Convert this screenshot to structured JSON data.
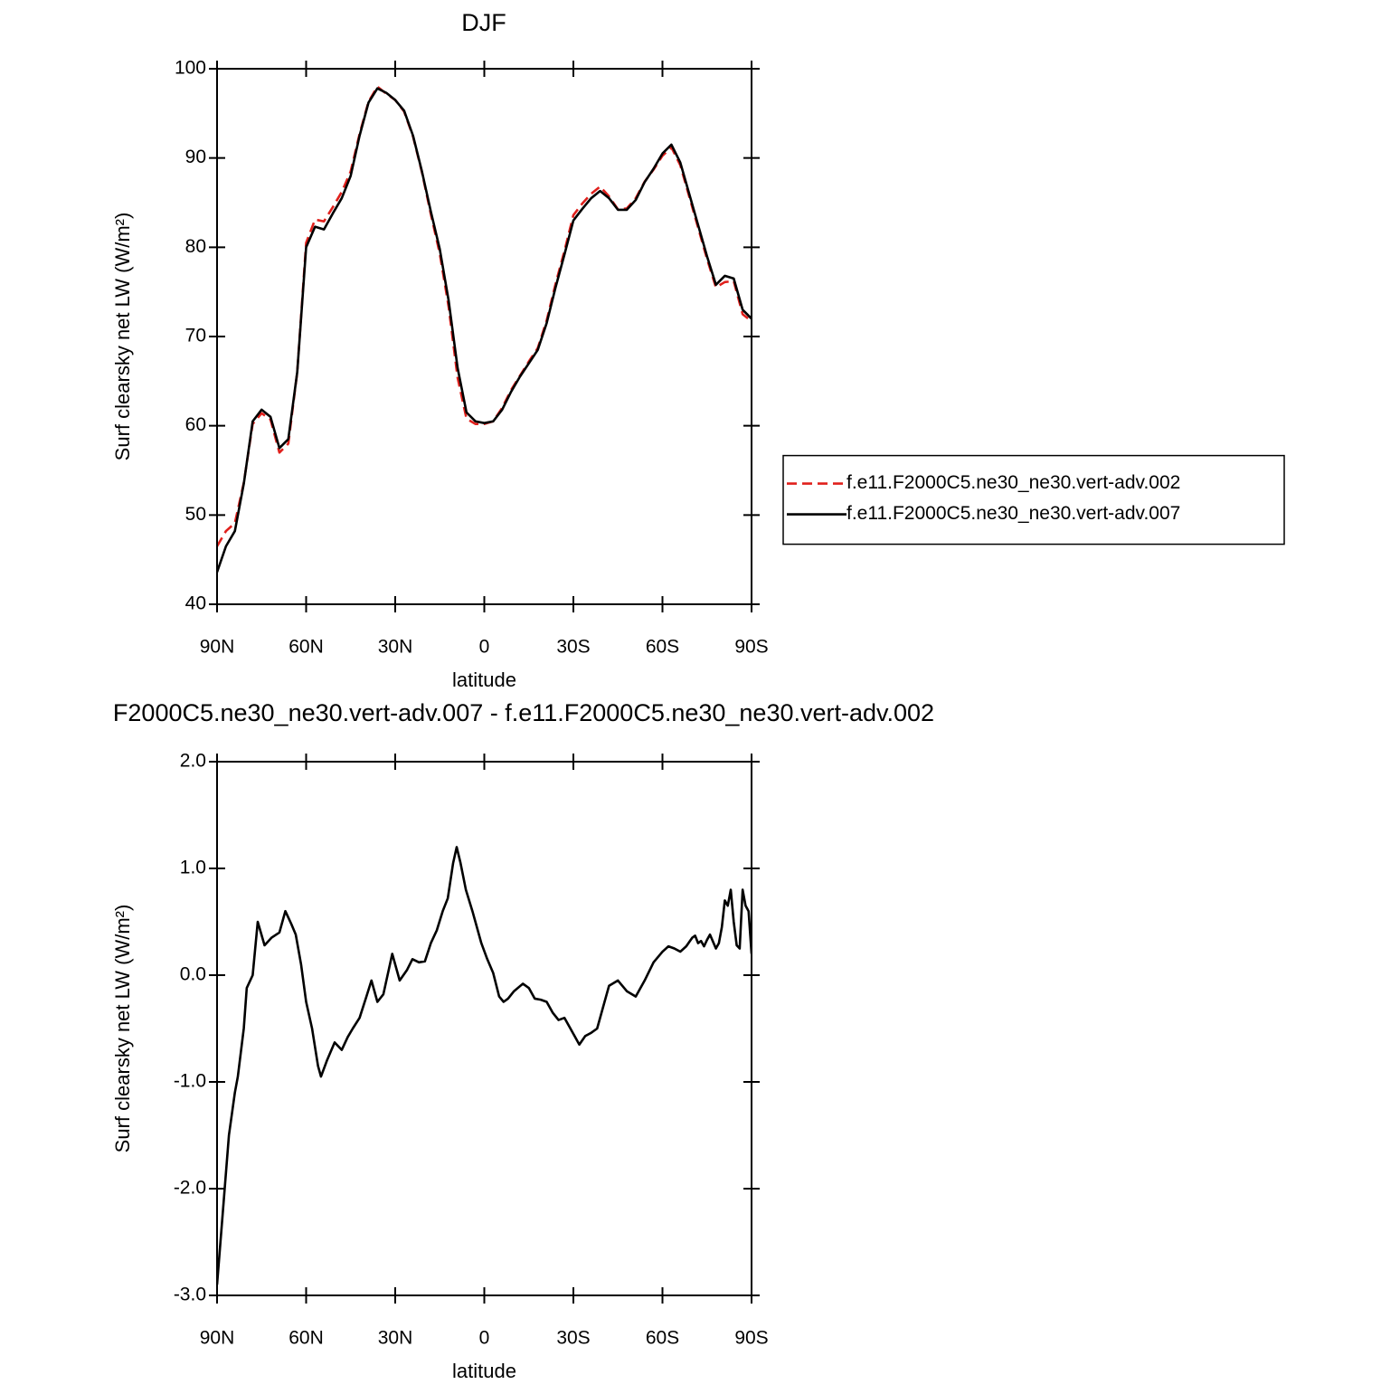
{
  "chart_data": [
    {
      "type": "line",
      "title": "DJF",
      "xlabel": "latitude",
      "ylabel": "Surf clearsky net LW (W/m²)",
      "xlim": [
        90,
        -90
      ],
      "ylim": [
        40,
        100
      ],
      "xticks": [
        {
          "value": 90,
          "label": "90N"
        },
        {
          "value": 60,
          "label": "60N"
        },
        {
          "value": 30,
          "label": "30N"
        },
        0,
        {
          "value": -30,
          "label": "30S"
        },
        {
          "value": -60,
          "label": "60S"
        },
        {
          "value": -90,
          "label": "90S"
        }
      ],
      "yticks": [
        40,
        50,
        60,
        70,
        80,
        90,
        100
      ],
      "legend": "right",
      "x": [
        90,
        87,
        84,
        81,
        78,
        75,
        72,
        69,
        66,
        63,
        60,
        57,
        54,
        51,
        48,
        45,
        42,
        39,
        36,
        33,
        30,
        27,
        24,
        21,
        18,
        15,
        12,
        9,
        6,
        3,
        0,
        -3,
        -6,
        -9,
        -12,
        -15,
        -18,
        -21,
        -24,
        -27,
        -30,
        -33,
        -36,
        -39,
        -42,
        -45,
        -48,
        -51,
        -54,
        -57,
        -60,
        -63,
        -66,
        -69,
        -72,
        -75,
        -78,
        -81,
        -84,
        -87,
        -90
      ],
      "series": [
        {
          "name": "f.e11.F2000C5.ne30_ne30.vert-adv.002",
          "color": "#e0201c",
          "line_style": "dashed",
          "values": [
            46.5,
            48.2,
            49.1,
            53.6,
            60.2,
            61.4,
            60.7,
            57,
            58,
            66,
            80.5,
            83.1,
            82.9,
            84.5,
            86.2,
            88.5,
            92.7,
            96.3,
            98,
            97.2,
            96.5,
            95.2,
            92.4,
            88.4,
            83.7,
            79.3,
            73.3,
            65.4,
            60.8,
            60.2,
            60.2,
            60.5,
            62,
            64,
            65.6,
            67.2,
            68.7,
            71.8,
            75.9,
            79.6,
            83.6,
            84.9,
            86,
            86.8,
            85.7,
            84.25,
            84.35,
            85.5,
            87.35,
            88.7,
            90.25,
            91.2,
            89.2,
            85.7,
            82.2,
            78.7,
            75.5,
            76.1,
            76.2,
            72.5,
            71.7
          ]
        },
        {
          "name": "f.e11.F2000C5.ne30_ne30.vert-adv.007",
          "color": "#000000",
          "line_style": "solid",
          "values": [
            43.6,
            46.5,
            48.2,
            53.5,
            60.5,
            61.8,
            61,
            57.5,
            58.5,
            66,
            80,
            82.3,
            82,
            83.8,
            85.5,
            88,
            92.5,
            96.2,
            97.8,
            97.3,
            96.5,
            95.3,
            92.5,
            88.5,
            84,
            79.8,
            74,
            66.5,
            61.5,
            60.5,
            60.3,
            60.5,
            61.8,
            63.8,
            65.5,
            67,
            68.5,
            71.5,
            75.5,
            79.2,
            83,
            84.3,
            85.5,
            86.3,
            85.5,
            84.2,
            84.2,
            85.3,
            87.3,
            88.8,
            90.5,
            91.5,
            89.5,
            86,
            82.5,
            79,
            75.8,
            76.8,
            76.5,
            73,
            72
          ]
        }
      ]
    },
    {
      "type": "line",
      "title": "F2000C5.ne30_ne30.vert-adv.007 - f.e11.F2000C5.ne30_ne30.vert-adv.002",
      "xlabel": "latitude",
      "ylabel": "Surf clearsky net LW (W/m²)",
      "xlim": [
        90,
        -90
      ],
      "ylim": [
        -3,
        2
      ],
      "xticks": [
        {
          "value": 90,
          "label": "90N"
        },
        {
          "value": 60,
          "label": "60N"
        },
        {
          "value": 30,
          "label": "30N"
        },
        0,
        {
          "value": -30,
          "label": "30S"
        },
        {
          "value": -60,
          "label": "60S"
        },
        {
          "value": -90,
          "label": "90S"
        }
      ],
      "yticks": [
        {
          "value": -3,
          "label": "-3.0"
        },
        {
          "value": -2,
          "label": "-2.0"
        },
        {
          "value": -1,
          "label": "-1.0"
        },
        {
          "value": 0,
          "label": "0.0"
        },
        {
          "value": 1,
          "label": "1.0"
        },
        {
          "value": 2,
          "label": "2.0"
        }
      ],
      "x": [
        90,
        88,
        86,
        84,
        83,
        81,
        80,
        78,
        76.3,
        74,
        71.7,
        69,
        67,
        65,
        63.5,
        61.7,
        60,
        58,
        56,
        55,
        53,
        50.4,
        48,
        46,
        44.3,
        42,
        39.7,
        38,
        36,
        34,
        31,
        28.5,
        26,
        24.2,
        22,
        20,
        18,
        16,
        14,
        12.3,
        10.5,
        9.3,
        8,
        6.2,
        4,
        1,
        -1,
        -3,
        -5,
        -6.5,
        -8,
        -10,
        -13,
        -15,
        -17,
        -19,
        -21,
        -23,
        -25,
        -27,
        -29,
        -32,
        -34,
        -36,
        -38,
        -40,
        -42,
        -45,
        -48,
        -51,
        -54,
        -57,
        -60,
        -62,
        -64,
        -66,
        -68,
        -70,
        -71,
        -72,
        -73,
        -74,
        -75,
        -76,
        -78,
        -79,
        -80,
        -81,
        -82,
        -83,
        -84,
        -85,
        -86,
        -87,
        -88,
        -89,
        -90
      ],
      "series": [
        {
          "color": "#000000",
          "line_style": "solid",
          "values": [
            -2.9,
            -2.2,
            -1.5,
            -1.1,
            -0.95,
            -0.5,
            -0.12,
            0.0,
            0.5,
            0.28,
            0.35,
            0.4,
            0.6,
            0.48,
            0.38,
            0.1,
            -0.25,
            -0.5,
            -0.85,
            -0.95,
            -0.8,
            -0.63,
            -0.7,
            -0.58,
            -0.5,
            -0.4,
            -0.2,
            -0.05,
            -0.25,
            -0.18,
            0.2,
            -0.05,
            0.05,
            0.15,
            0.12,
            0.13,
            0.3,
            0.42,
            0.6,
            0.72,
            1.05,
            1.2,
            1.05,
            0.8,
            0.6,
            0.3,
            0.15,
            0.02,
            -0.2,
            -0.25,
            -0.22,
            -0.15,
            -0.08,
            -0.12,
            -0.22,
            -0.23,
            -0.25,
            -0.35,
            -0.42,
            -0.4,
            -0.5,
            -0.65,
            -0.57,
            -0.54,
            -0.5,
            -0.3,
            -0.1,
            -0.05,
            -0.15,
            -0.2,
            -0.05,
            0.12,
            0.22,
            0.27,
            0.25,
            0.22,
            0.27,
            0.35,
            0.37,
            0.3,
            0.32,
            0.27,
            0.33,
            0.38,
            0.25,
            0.3,
            0.45,
            0.7,
            0.65,
            0.8,
            0.5,
            0.28,
            0.25,
            0.8,
            0.65,
            0.6,
            0.2
          ]
        }
      ]
    }
  ]
}
